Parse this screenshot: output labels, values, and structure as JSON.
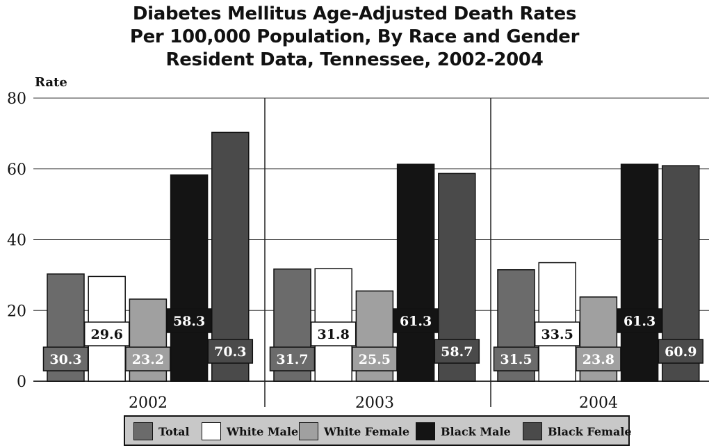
{
  "title_lines": [
    "Diabetes Mellitus Age-Adjusted Death Rates",
    "Per 100,000 Population, By Race and Gender",
    "Resident Data, Tennessee, 2002-2004"
  ],
  "chart_data": {
    "type": "bar",
    "title": "Diabetes Mellitus Age-Adjusted Death Rates Per 100,000 Population, By Race and Gender Resident Data, Tennessee, 2002-2004",
    "ylabel": "Rate",
    "xlabel": "",
    "ylim": [
      0,
      80
    ],
    "yticks": [
      0,
      20,
      40,
      60,
      80
    ],
    "categories": [
      "2002",
      "2003",
      "2004"
    ],
    "grid": true,
    "legend_position": "bottom",
    "series": [
      {
        "name": "Total",
        "color": "#6b6b6b",
        "values": [
          30.3,
          31.7,
          31.5
        ]
      },
      {
        "name": "White Male",
        "color": "#ffffff",
        "values": [
          29.6,
          31.8,
          33.5
        ]
      },
      {
        "name": "White Female",
        "color": "#a0a0a0",
        "values": [
          23.2,
          25.5,
          23.8
        ]
      },
      {
        "name": "Black Male",
        "color": "#141414",
        "values": [
          58.3,
          61.3,
          61.3
        ]
      },
      {
        "name": "Black Female",
        "color": "#4a4a4a",
        "values": [
          70.3,
          58.7,
          60.9
        ]
      }
    ]
  }
}
